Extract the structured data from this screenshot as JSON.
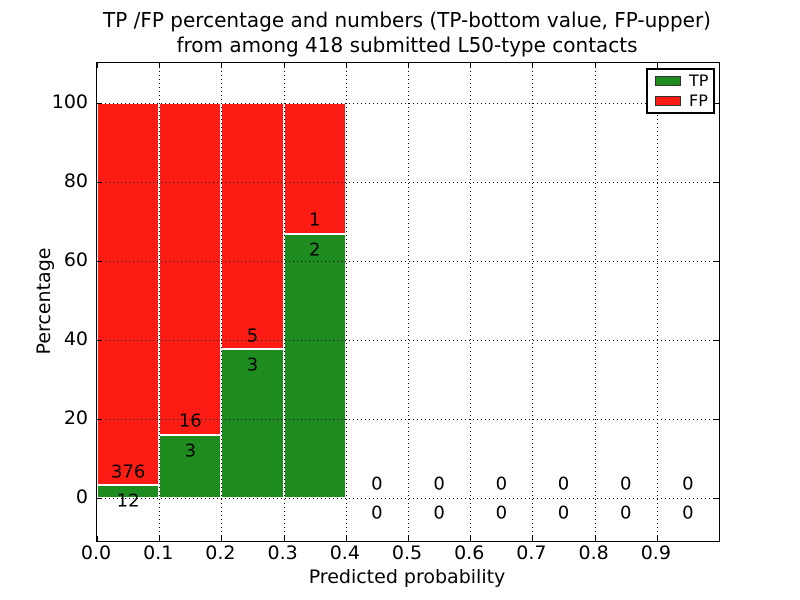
{
  "figure": {
    "title_line1": "TP /FP percentage and numbers (TP-bottom value, FP-upper)",
    "title_line2": "from among 418 submitted L50-type contacts"
  },
  "chart_data": {
    "type": "bar",
    "stacked": true,
    "title": "TP /FP percentage and numbers (TP-bottom value, FP-upper)\nfrom among 418 submitted L50-type contacts",
    "xlabel": "Predicted probability",
    "ylabel": "Percentage",
    "xlim": [
      0.0,
      1.0
    ],
    "ylim": [
      -11,
      110
    ],
    "x_tick_labels": [
      "0.0",
      "0.1",
      "0.2",
      "0.3",
      "0.4",
      "0.5",
      "0.6",
      "0.7",
      "0.8",
      "0.9"
    ],
    "x_tick_values": [
      0.0,
      0.1,
      0.2,
      0.3,
      0.4,
      0.5,
      0.6,
      0.7,
      0.8,
      0.9
    ],
    "y_ticks": [
      0,
      20,
      40,
      60,
      80,
      100
    ],
    "grid": "dotted black, both axes, drawn over bars",
    "bin_width": 0.1,
    "total_contacts": 418,
    "categories": [
      "0.0-0.1",
      "0.1-0.2",
      "0.2-0.3",
      "0.3-0.4",
      "0.4-0.5",
      "0.5-0.6",
      "0.6-0.7",
      "0.7-0.8",
      "0.8-0.9",
      "0.9-1.0"
    ],
    "series": [
      {
        "name": "TP",
        "color": "#1e8c1e",
        "counts": [
          12,
          3,
          3,
          2,
          0,
          0,
          0,
          0,
          0,
          0
        ],
        "percentages": [
          3.09,
          15.79,
          37.5,
          66.67,
          0,
          0,
          0,
          0,
          0,
          0
        ]
      },
      {
        "name": "FP",
        "color": "#fc1c14",
        "counts": [
          376,
          16,
          5,
          1,
          0,
          0,
          0,
          0,
          0,
          0
        ],
        "percentages": [
          96.91,
          84.21,
          62.5,
          33.33,
          0,
          0,
          0,
          0,
          0,
          0
        ]
      }
    ],
    "legend": {
      "position": "upper right",
      "entries": [
        {
          "label": "TP",
          "color": "#1e8c1e"
        },
        {
          "label": "FP",
          "color": "#fc1c14"
        }
      ]
    },
    "label_offsets": {
      "fp_label_above_boundary_pct": 3.5,
      "tp_label_below_boundary_pct": 4.0
    }
  }
}
